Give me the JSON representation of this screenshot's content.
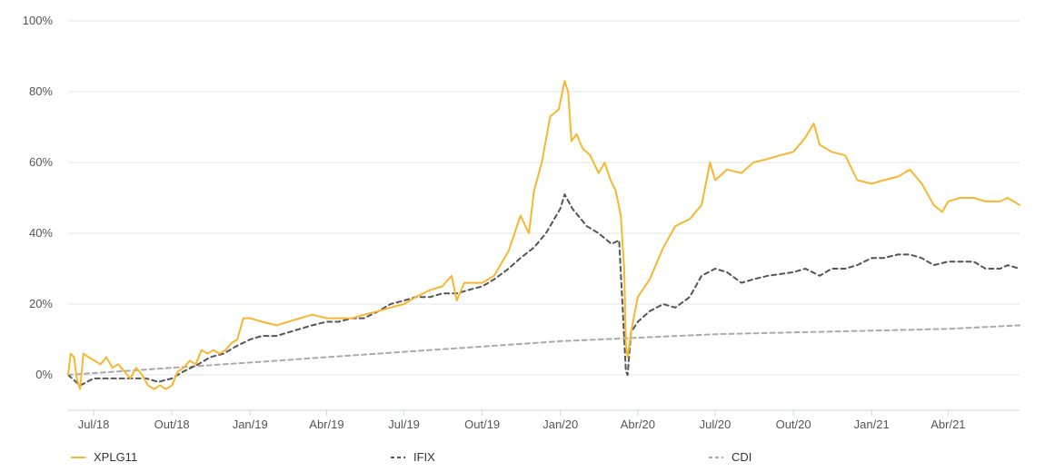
{
  "chart_data": {
    "type": "line",
    "ylim": [
      -10,
      100
    ],
    "y_ticks": [
      {
        "value": 0,
        "label": "0%"
      },
      {
        "value": 20,
        "label": "20%"
      },
      {
        "value": 40,
        "label": "40%"
      },
      {
        "value": 60,
        "label": "60%"
      },
      {
        "value": 80,
        "label": "80%"
      },
      {
        "value": 100,
        "label": "100%"
      }
    ],
    "x_range": [
      "2018-06-01",
      "2021-06-24"
    ],
    "x_ticks": [
      {
        "date": "2018-07-01",
        "label": "Jul/18"
      },
      {
        "date": "2018-10-01",
        "label": "Out/18"
      },
      {
        "date": "2019-01-01",
        "label": "Jan/19"
      },
      {
        "date": "2019-04-01",
        "label": "Abr/19"
      },
      {
        "date": "2019-07-01",
        "label": "Jul/19"
      },
      {
        "date": "2019-10-01",
        "label": "Out/19"
      },
      {
        "date": "2020-01-01",
        "label": "Jan/20"
      },
      {
        "date": "2020-04-01",
        "label": "Abr/20"
      },
      {
        "date": "2020-07-01",
        "label": "Jul/20"
      },
      {
        "date": "2020-10-01",
        "label": "Out/20"
      },
      {
        "date": "2021-01-01",
        "label": "Jan/21"
      },
      {
        "date": "2021-04-01",
        "label": "Abr/21"
      }
    ],
    "grid": true,
    "legend_position": "bottom",
    "series": [
      {
        "name": "XPLG11",
        "color": "#f7b731",
        "dash": "solid",
        "points": [
          [
            "2018-06-01",
            0
          ],
          [
            "2018-06-04",
            6
          ],
          [
            "2018-06-08",
            5
          ],
          [
            "2018-06-11",
            -1
          ],
          [
            "2018-06-15",
            -4
          ],
          [
            "2018-06-19",
            6
          ],
          [
            "2018-06-25",
            5
          ],
          [
            "2018-07-02",
            4
          ],
          [
            "2018-07-09",
            3
          ],
          [
            "2018-07-16",
            5
          ],
          [
            "2018-07-23",
            2
          ],
          [
            "2018-07-30",
            3
          ],
          [
            "2018-08-06",
            1
          ],
          [
            "2018-08-13",
            -1
          ],
          [
            "2018-08-20",
            2
          ],
          [
            "2018-08-27",
            0
          ],
          [
            "2018-09-03",
            -3
          ],
          [
            "2018-09-10",
            -4
          ],
          [
            "2018-09-17",
            -3
          ],
          [
            "2018-09-24",
            -4
          ],
          [
            "2018-10-01",
            -3
          ],
          [
            "2018-10-08",
            1
          ],
          [
            "2018-10-15",
            2
          ],
          [
            "2018-10-22",
            4
          ],
          [
            "2018-10-29",
            3
          ],
          [
            "2018-11-05",
            7
          ],
          [
            "2018-11-12",
            6
          ],
          [
            "2018-11-19",
            7
          ],
          [
            "2018-11-26",
            6
          ],
          [
            "2018-12-03",
            7
          ],
          [
            "2018-12-10",
            9
          ],
          [
            "2018-12-17",
            10
          ],
          [
            "2018-12-24",
            16
          ],
          [
            "2019-01-01",
            16
          ],
          [
            "2019-01-15",
            15
          ],
          [
            "2019-02-01",
            14
          ],
          [
            "2019-02-15",
            15
          ],
          [
            "2019-03-01",
            16
          ],
          [
            "2019-03-15",
            17
          ],
          [
            "2019-04-01",
            16
          ],
          [
            "2019-04-15",
            16
          ],
          [
            "2019-05-01",
            16
          ],
          [
            "2019-05-15",
            17
          ],
          [
            "2019-06-01",
            18
          ],
          [
            "2019-06-15",
            19
          ],
          [
            "2019-07-01",
            20
          ],
          [
            "2019-07-15",
            22
          ],
          [
            "2019-08-01",
            24
          ],
          [
            "2019-08-15",
            25
          ],
          [
            "2019-08-26",
            28
          ],
          [
            "2019-09-01",
            21
          ],
          [
            "2019-09-10",
            26
          ],
          [
            "2019-10-01",
            26
          ],
          [
            "2019-10-15",
            28
          ],
          [
            "2019-11-01",
            35
          ],
          [
            "2019-11-15",
            45
          ],
          [
            "2019-11-25",
            40
          ],
          [
            "2019-12-01",
            52
          ],
          [
            "2019-12-10",
            60
          ],
          [
            "2019-12-20",
            73
          ],
          [
            "2019-12-30",
            75
          ],
          [
            "2020-01-06",
            83
          ],
          [
            "2020-01-10",
            80
          ],
          [
            "2020-01-14",
            66
          ],
          [
            "2020-01-20",
            68
          ],
          [
            "2020-01-27",
            64
          ],
          [
            "2020-02-05",
            62
          ],
          [
            "2020-02-15",
            57
          ],
          [
            "2020-02-22",
            60
          ],
          [
            "2020-02-29",
            55
          ],
          [
            "2020-03-06",
            52
          ],
          [
            "2020-03-12",
            45
          ],
          [
            "2020-03-16",
            30
          ],
          [
            "2020-03-18",
            8
          ],
          [
            "2020-03-20",
            5
          ],
          [
            "2020-03-24",
            12
          ],
          [
            "2020-04-01",
            22
          ],
          [
            "2020-04-15",
            27
          ],
          [
            "2020-05-01",
            36
          ],
          [
            "2020-05-15",
            42
          ],
          [
            "2020-06-01",
            44
          ],
          [
            "2020-06-15",
            48
          ],
          [
            "2020-06-25",
            60
          ],
          [
            "2020-07-01",
            55
          ],
          [
            "2020-07-15",
            58
          ],
          [
            "2020-08-01",
            57
          ],
          [
            "2020-08-15",
            60
          ],
          [
            "2020-09-01",
            61
          ],
          [
            "2020-09-15",
            62
          ],
          [
            "2020-10-01",
            63
          ],
          [
            "2020-10-15",
            67
          ],
          [
            "2020-10-25",
            71
          ],
          [
            "2020-11-01",
            65
          ],
          [
            "2020-11-15",
            63
          ],
          [
            "2020-12-01",
            62
          ],
          [
            "2020-12-15",
            55
          ],
          [
            "2021-01-01",
            54
          ],
          [
            "2021-01-15",
            55
          ],
          [
            "2021-02-01",
            56
          ],
          [
            "2021-02-15",
            58
          ],
          [
            "2021-03-01",
            54
          ],
          [
            "2021-03-15",
            48
          ],
          [
            "2021-03-25",
            46
          ],
          [
            "2021-04-01",
            49
          ],
          [
            "2021-04-15",
            50
          ],
          [
            "2021-05-01",
            50
          ],
          [
            "2021-05-15",
            49
          ],
          [
            "2021-06-01",
            49
          ],
          [
            "2021-06-10",
            50
          ],
          [
            "2021-06-24",
            48
          ]
        ]
      },
      {
        "name": "IFIX",
        "color": "#555555",
        "dash": "dashed",
        "points": [
          [
            "2018-06-01",
            0
          ],
          [
            "2018-06-15",
            -3
          ],
          [
            "2018-07-01",
            -1
          ],
          [
            "2018-07-15",
            -1
          ],
          [
            "2018-08-01",
            -1
          ],
          [
            "2018-08-15",
            -1
          ],
          [
            "2018-09-01",
            -1
          ],
          [
            "2018-09-15",
            -2
          ],
          [
            "2018-10-01",
            -1
          ],
          [
            "2018-10-15",
            1
          ],
          [
            "2018-11-01",
            3
          ],
          [
            "2018-11-15",
            5
          ],
          [
            "2018-12-01",
            6
          ],
          [
            "2018-12-15",
            8
          ],
          [
            "2019-01-01",
            10
          ],
          [
            "2019-01-15",
            11
          ],
          [
            "2019-02-01",
            11
          ],
          [
            "2019-02-15",
            12
          ],
          [
            "2019-03-01",
            13
          ],
          [
            "2019-03-15",
            14
          ],
          [
            "2019-04-01",
            15
          ],
          [
            "2019-04-15",
            15
          ],
          [
            "2019-05-01",
            16
          ],
          [
            "2019-05-15",
            16
          ],
          [
            "2019-06-01",
            18
          ],
          [
            "2019-06-15",
            20
          ],
          [
            "2019-07-01",
            21
          ],
          [
            "2019-07-15",
            22
          ],
          [
            "2019-08-01",
            22
          ],
          [
            "2019-08-15",
            23
          ],
          [
            "2019-09-01",
            23
          ],
          [
            "2019-09-15",
            24
          ],
          [
            "2019-10-01",
            25
          ],
          [
            "2019-10-15",
            27
          ],
          [
            "2019-11-01",
            30
          ],
          [
            "2019-11-15",
            33
          ],
          [
            "2019-12-01",
            36
          ],
          [
            "2019-12-15",
            40
          ],
          [
            "2020-01-01",
            47
          ],
          [
            "2020-01-06",
            51
          ],
          [
            "2020-01-15",
            47
          ],
          [
            "2020-02-01",
            42
          ],
          [
            "2020-02-15",
            40
          ],
          [
            "2020-03-01",
            37
          ],
          [
            "2020-03-10",
            38
          ],
          [
            "2020-03-14",
            20
          ],
          [
            "2020-03-18",
            1
          ],
          [
            "2020-03-20",
            0
          ],
          [
            "2020-03-24",
            12
          ],
          [
            "2020-04-01",
            15
          ],
          [
            "2020-04-15",
            18
          ],
          [
            "2020-05-01",
            20
          ],
          [
            "2020-05-15",
            19
          ],
          [
            "2020-06-01",
            22
          ],
          [
            "2020-06-15",
            28
          ],
          [
            "2020-07-01",
            30
          ],
          [
            "2020-07-15",
            29
          ],
          [
            "2020-08-01",
            26
          ],
          [
            "2020-08-15",
            27
          ],
          [
            "2020-09-01",
            28
          ],
          [
            "2020-10-01",
            29
          ],
          [
            "2020-10-15",
            30
          ],
          [
            "2020-11-01",
            28
          ],
          [
            "2020-11-15",
            30
          ],
          [
            "2020-12-01",
            30
          ],
          [
            "2020-12-15",
            31
          ],
          [
            "2021-01-01",
            33
          ],
          [
            "2021-01-15",
            33
          ],
          [
            "2021-02-01",
            34
          ],
          [
            "2021-02-15",
            34
          ],
          [
            "2021-03-01",
            33
          ],
          [
            "2021-03-15",
            31
          ],
          [
            "2021-04-01",
            32
          ],
          [
            "2021-04-15",
            32
          ],
          [
            "2021-05-01",
            32
          ],
          [
            "2021-05-15",
            30
          ],
          [
            "2021-06-01",
            30
          ],
          [
            "2021-06-10",
            31
          ],
          [
            "2021-06-24",
            30
          ]
        ]
      },
      {
        "name": "CDI",
        "color": "#aaaaaa",
        "dash": "dashed",
        "points": [
          [
            "2018-06-01",
            0
          ],
          [
            "2018-10-01",
            2
          ],
          [
            "2019-01-01",
            3.5
          ],
          [
            "2019-04-01",
            5
          ],
          [
            "2019-07-01",
            6.5
          ],
          [
            "2019-10-01",
            8
          ],
          [
            "2020-01-01",
            9.5
          ],
          [
            "2020-04-01",
            10.5
          ],
          [
            "2020-07-01",
            11.5
          ],
          [
            "2020-10-01",
            12
          ],
          [
            "2021-01-01",
            12.5
          ],
          [
            "2021-04-01",
            13
          ],
          [
            "2021-06-24",
            14
          ]
        ]
      }
    ]
  }
}
